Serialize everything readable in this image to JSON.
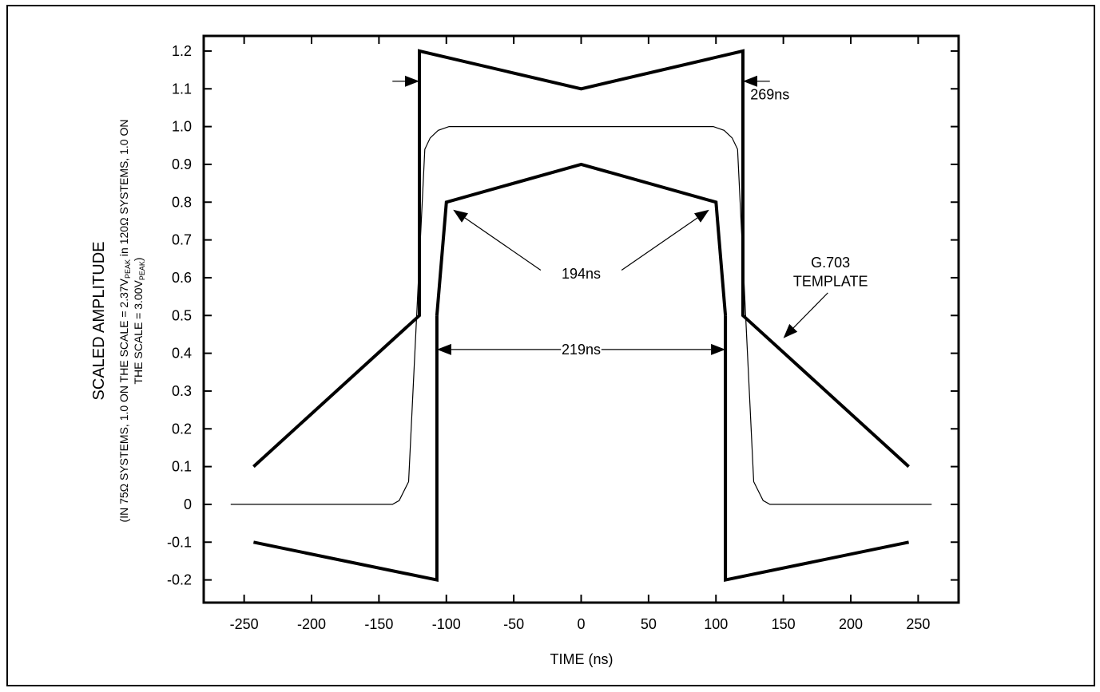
{
  "chart_data": {
    "type": "line",
    "title": "",
    "xlabel": "TIME (ns)",
    "ylabel": "SCALED AMPLITUDE",
    "ylabel_note_line1": "(IN 75Ω SYSTEMS, 1.0  ON THE SCALE = 2.37V",
    "ylabel_note_sub1": "PEAK",
    "ylabel_note_mid": " in 120Ω SYSTEMS, 1.0 ON",
    "ylabel_note_line2": "THE SCALE = 3.00V",
    "ylabel_note_sub2": "PEAK",
    "ylabel_note_end": ")",
    "xlim": [
      -280,
      280
    ],
    "ylim": [
      -0.26,
      1.24
    ],
    "x_ticks": [
      -250,
      -200,
      -150,
      -100,
      -50,
      0,
      50,
      100,
      150,
      200,
      250
    ],
    "x_tick_labels": [
      "-250",
      "-200",
      "-150",
      "-100",
      "-50",
      "0",
      "50",
      "100",
      "150",
      "200",
      "250"
    ],
    "y_ticks": [
      1.2,
      1.1,
      1.0,
      0.9,
      0.8,
      0.7,
      0.6,
      0.5,
      0.4,
      0.3,
      0.2,
      0.1,
      0,
      -0.1,
      -0.2
    ],
    "y_tick_labels": [
      "1.2",
      "1.1",
      "1.0",
      "0.9",
      "0.8",
      "0.7",
      "0.6",
      "0.5",
      "0.4",
      "0.3",
      "0.2",
      "0.1",
      "0",
      "-0.1",
      "-0.2"
    ],
    "grid": false,
    "series": [
      {
        "style": "thick",
        "points": [
          [
            -243,
            0.1
          ],
          [
            -120,
            0.5
          ],
          [
            -120,
            1.2
          ],
          [
            0,
            1.1
          ],
          [
            120,
            1.2
          ],
          [
            120,
            0.5
          ],
          [
            243,
            0.1
          ]
        ]
      },
      {
        "style": "thick",
        "points": [
          [
            -107,
            0.5
          ],
          [
            -100,
            0.8
          ],
          [
            0,
            0.9
          ],
          [
            100,
            0.8
          ],
          [
            107,
            0.5
          ]
        ]
      },
      {
        "style": "thick",
        "points": [
          [
            -243,
            -0.1
          ],
          [
            -107,
            -0.2
          ],
          [
            -107,
            0.5
          ]
        ]
      },
      {
        "style": "thick",
        "points": [
          [
            107,
            0.5
          ],
          [
            107,
            -0.2
          ],
          [
            243,
            -0.1
          ]
        ]
      },
      {
        "style": "thin",
        "points": [
          [
            -260,
            0
          ],
          [
            -140,
            0
          ],
          [
            -135,
            0.01
          ],
          [
            -128,
            0.06
          ],
          [
            -122,
            0.5
          ],
          [
            -116,
            0.94
          ],
          [
            -112,
            0.97
          ],
          [
            -106,
            0.99
          ],
          [
            -98,
            1.0
          ],
          [
            -80,
            1.0
          ],
          [
            80,
            1.0
          ],
          [
            98,
            1.0
          ],
          [
            106,
            0.99
          ],
          [
            112,
            0.97
          ],
          [
            116,
            0.94
          ],
          [
            122,
            0.5
          ],
          [
            128,
            0.06
          ],
          [
            135,
            0.01
          ],
          [
            140,
            0
          ],
          [
            260,
            0
          ]
        ]
      }
    ],
    "annotations": [
      {
        "text": "269ns",
        "x": 140,
        "y": 1.085
      },
      {
        "text": "194ns",
        "x": 0,
        "y": 0.61
      },
      {
        "text": "219ns",
        "x": 0,
        "y": 0.41
      },
      {
        "text": "G.703",
        "x": 185,
        "y": 0.64
      },
      {
        "text": "TEMPLATE",
        "x": 185,
        "y": 0.59
      }
    ],
    "arrows": [
      {
        "from": [
          -140,
          1.12
        ],
        "to": [
          -120,
          1.12
        ]
      },
      {
        "from": [
          140,
          1.12
        ],
        "to": [
          120,
          1.12
        ]
      },
      {
        "from": [
          -15,
          0.41
        ],
        "to": [
          -107,
          0.41
        ]
      },
      {
        "from": [
          15,
          0.41
        ],
        "to": [
          107,
          0.41
        ]
      },
      {
        "from": [
          -30,
          0.62
        ],
        "to": [
          -95,
          0.78
        ]
      },
      {
        "from": [
          30,
          0.62
        ],
        "to": [
          95,
          0.78
        ]
      },
      {
        "from": [
          183,
          0.56
        ],
        "to": [
          150,
          0.44
        ]
      }
    ]
  }
}
